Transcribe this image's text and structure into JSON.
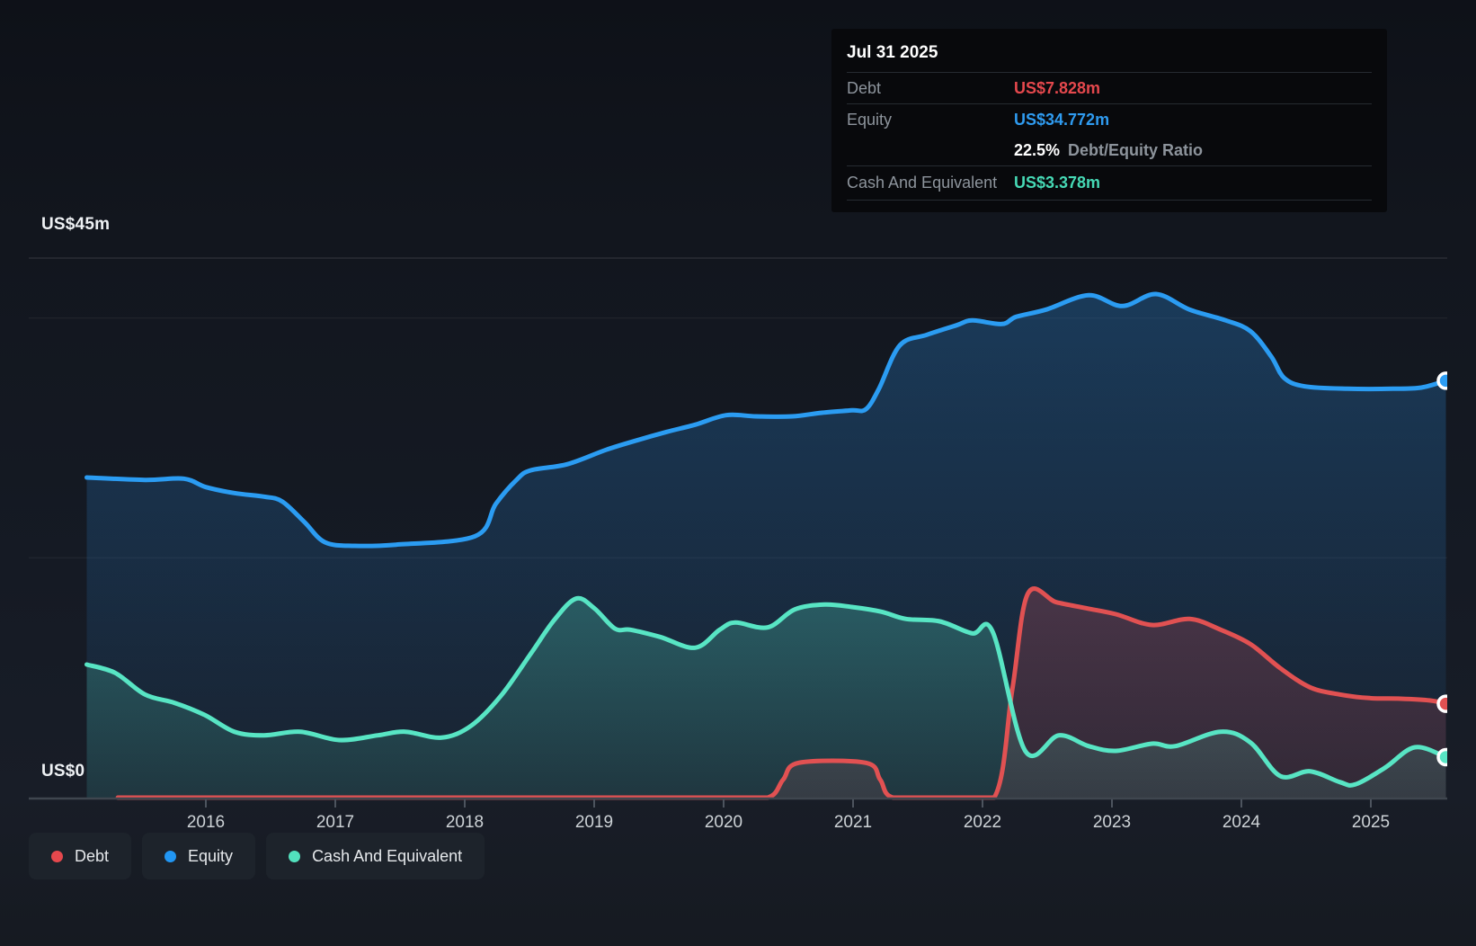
{
  "tooltip": {
    "date": "Jul 31 2025",
    "debt": {
      "label": "Debt",
      "value": "US$7.828m"
    },
    "equity": {
      "label": "Equity",
      "value": "US$34.772m"
    },
    "ratio": {
      "value": "22.5%",
      "label": "Debt/Equity Ratio"
    },
    "cash": {
      "label": "Cash And Equivalent",
      "value": "US$3.378m"
    }
  },
  "axis": {
    "y_top_label": "US$45m",
    "y_zero_label": "US$0",
    "years": [
      "2016",
      "2017",
      "2018",
      "2019",
      "2020",
      "2021",
      "2022",
      "2023",
      "2024",
      "2025"
    ]
  },
  "legend": [
    {
      "label": "Debt",
      "color": "#e5484d"
    },
    {
      "label": "Equity",
      "color": "#2196f3"
    },
    {
      "label": "Cash And Equivalent",
      "color": "#52e0bd"
    }
  ],
  "colors": {
    "debt": "#e5484d",
    "equity": "#2f9bf0",
    "cash": "#46d9b5",
    "debt_line": "#e15152",
    "equity_line": "#2b9cf2",
    "cash_line": "#58e5c4",
    "debt_fill_top": "rgba(225,81,90,0.24)",
    "debt_fill_bottom": "rgba(225,81,90,0.12)",
    "equity_fill_top": "rgba(40,125,198,0.35)",
    "equity_fill_bottom": "rgba(40,125,198,0.06)",
    "cash_fill_top": "rgba(88,229,196,0.26)",
    "cash_fill_bottom": "rgba(88,229,196,0.10)",
    "grid_strong": "rgba(255,255,255,0.10)",
    "grid_faint": "rgba(255,255,255,0.05)",
    "axis_line": "#3f464f",
    "tick": "#4d545e",
    "year_label": "#cdd2d6"
  },
  "chart_data": {
    "type": "area",
    "title": "Debt to Equity History",
    "x_unit": "decimal_year",
    "xlim": [
      2015.08,
      2025.58
    ],
    "ylim": [
      0,
      45
    ],
    "y_axis_labels": [
      "US$0",
      "US$45m"
    ],
    "gridline_values": [
      45,
      40,
      20
    ],
    "legend_position": "bottom-left",
    "last_point": {
      "date": "Jul 31 2025",
      "debt_m": 7.828,
      "equity_m": 34.772,
      "cash_m": 3.378,
      "debt_equity_ratio_pct": 22.5
    },
    "series": [
      {
        "name": "Equity",
        "color_key": "equity",
        "points": [
          [
            2015.08,
            26.7
          ],
          [
            2015.53,
            26.5
          ],
          [
            2015.83,
            26.6
          ],
          [
            2016.0,
            25.9
          ],
          [
            2016.22,
            25.4
          ],
          [
            2016.45,
            25.1
          ],
          [
            2016.59,
            24.7
          ],
          [
            2016.76,
            23.0
          ],
          [
            2016.92,
            21.3
          ],
          [
            2017.15,
            21.0
          ],
          [
            2017.47,
            21.1
          ],
          [
            2018.08,
            21.8
          ],
          [
            2018.24,
            24.5
          ],
          [
            2018.4,
            26.5
          ],
          [
            2018.51,
            27.3
          ],
          [
            2018.79,
            27.8
          ],
          [
            2019.09,
            29.0
          ],
          [
            2019.33,
            29.8
          ],
          [
            2019.56,
            30.5
          ],
          [
            2019.78,
            31.1
          ],
          [
            2020.02,
            31.9
          ],
          [
            2020.25,
            31.8
          ],
          [
            2020.53,
            31.8
          ],
          [
            2020.76,
            32.1
          ],
          [
            2020.99,
            32.3
          ],
          [
            2021.1,
            32.4
          ],
          [
            2021.2,
            34.1
          ],
          [
            2021.36,
            37.7
          ],
          [
            2021.57,
            38.6
          ],
          [
            2021.8,
            39.4
          ],
          [
            2021.92,
            39.8
          ],
          [
            2022.15,
            39.5
          ],
          [
            2022.26,
            40.1
          ],
          [
            2022.49,
            40.7
          ],
          [
            2022.82,
            41.9
          ],
          [
            2023.08,
            41.0
          ],
          [
            2023.34,
            42.0
          ],
          [
            2023.6,
            40.7
          ],
          [
            2023.88,
            39.8
          ],
          [
            2024.07,
            38.9
          ],
          [
            2024.23,
            36.8
          ],
          [
            2024.33,
            35.0
          ],
          [
            2024.49,
            34.3
          ],
          [
            2024.82,
            34.1
          ],
          [
            2025.17,
            34.1
          ],
          [
            2025.39,
            34.2
          ],
          [
            2025.58,
            34.772
          ]
        ]
      },
      {
        "name": "Debt",
        "color_key": "debt",
        "points": [
          [
            2015.32,
            0
          ],
          [
            2016.5,
            0
          ],
          [
            2017.89,
            0
          ],
          [
            2019.28,
            0
          ],
          [
            2019.97,
            0
          ],
          [
            2020.34,
            0
          ],
          [
            2020.46,
            1.5
          ],
          [
            2020.58,
            2.9
          ],
          [
            2021.1,
            2.9
          ],
          [
            2021.21,
            1.5
          ],
          [
            2021.31,
            0
          ],
          [
            2021.71,
            0
          ],
          [
            2022.09,
            0
          ],
          [
            2022.23,
            9.0
          ],
          [
            2022.35,
            17.0
          ],
          [
            2022.57,
            16.3
          ],
          [
            2022.8,
            15.8
          ],
          [
            2023.03,
            15.3
          ],
          [
            2023.31,
            14.4
          ],
          [
            2023.6,
            14.9
          ],
          [
            2023.84,
            14.0
          ],
          [
            2024.07,
            12.8
          ],
          [
            2024.3,
            10.8
          ],
          [
            2024.53,
            9.2
          ],
          [
            2024.76,
            8.6
          ],
          [
            2024.99,
            8.3
          ],
          [
            2025.23,
            8.25
          ],
          [
            2025.46,
            8.1
          ],
          [
            2025.58,
            7.828
          ]
        ]
      },
      {
        "name": "Cash And Equivalent",
        "color_key": "cash",
        "points": [
          [
            2015.08,
            11.1
          ],
          [
            2015.3,
            10.4
          ],
          [
            2015.53,
            8.6
          ],
          [
            2015.76,
            7.9
          ],
          [
            2015.99,
            6.9
          ],
          [
            2016.22,
            5.5
          ],
          [
            2016.45,
            5.2
          ],
          [
            2016.73,
            5.5
          ],
          [
            2017.03,
            4.8
          ],
          [
            2017.33,
            5.2
          ],
          [
            2017.54,
            5.5
          ],
          [
            2017.82,
            5.0
          ],
          [
            2018.05,
            6.0
          ],
          [
            2018.28,
            8.5
          ],
          [
            2018.51,
            12.0
          ],
          [
            2018.69,
            14.8
          ],
          [
            2018.86,
            16.6
          ],
          [
            2019.0,
            15.8
          ],
          [
            2019.16,
            14.1
          ],
          [
            2019.28,
            14.0
          ],
          [
            2019.51,
            13.4
          ],
          [
            2019.78,
            12.5
          ],
          [
            2019.97,
            14.0
          ],
          [
            2020.09,
            14.6
          ],
          [
            2020.34,
            14.2
          ],
          [
            2020.55,
            15.7
          ],
          [
            2020.78,
            16.1
          ],
          [
            2020.99,
            15.9
          ],
          [
            2021.22,
            15.5
          ],
          [
            2021.41,
            14.9
          ],
          [
            2021.67,
            14.7
          ],
          [
            2021.92,
            13.7
          ],
          [
            2022.08,
            13.8
          ],
          [
            2022.33,
            3.9
          ],
          [
            2022.59,
            5.2
          ],
          [
            2022.82,
            4.3
          ],
          [
            2023.03,
            3.9
          ],
          [
            2023.31,
            4.5
          ],
          [
            2023.49,
            4.3
          ],
          [
            2023.84,
            5.5
          ],
          [
            2024.07,
            4.6
          ],
          [
            2024.3,
            1.8
          ],
          [
            2024.53,
            2.2
          ],
          [
            2024.76,
            1.3
          ],
          [
            2024.88,
            1.1
          ],
          [
            2025.11,
            2.5
          ],
          [
            2025.34,
            4.2
          ],
          [
            2025.58,
            3.378
          ]
        ]
      }
    ]
  }
}
